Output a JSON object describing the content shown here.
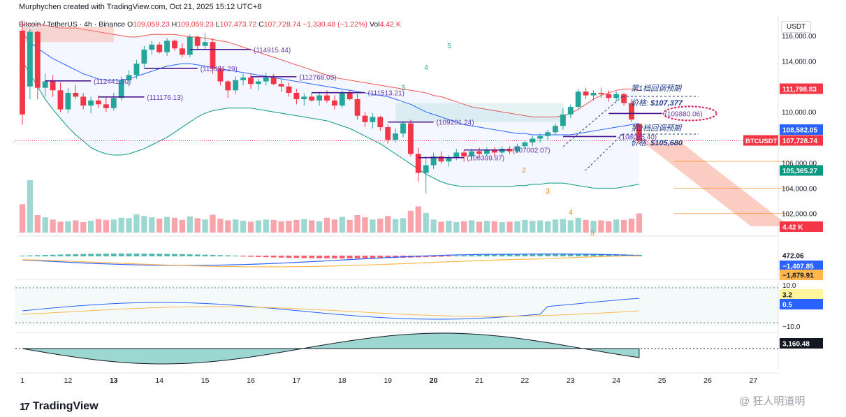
{
  "header": {
    "credit": "Murphychen created with TradingView.com, Oct 21, 2025 15:12 UTC+8"
  },
  "legend": {
    "pair": "Bitcoin / TetherUS · 4h · Binance",
    "o_label": "O",
    "o": "109,059.23",
    "h_label": "H",
    "h": "109,059.23",
    "l_label": "L",
    "l": "107,473.72",
    "c_label": "C",
    "c": "107,728.74",
    "change": "−1,330.48 (−1.22%)",
    "vol_label": "Vol",
    "vol": "4.42 K"
  },
  "currency_button": "USDT",
  "colors": {
    "up": "#26a69a",
    "down": "#f23645",
    "upper_band": "#ef5350",
    "mid_band": "#2962ff",
    "lower_band": "#089981",
    "level": "#4a148c",
    "level_text": "#673ab7",
    "annotation": "#1e3a8a",
    "projection": "#f8927a"
  },
  "annotations": {
    "first": {
      "title": "第1档回调预期",
      "price_label": "价格:",
      "price": "$107,377"
    },
    "second": {
      "title": "第2档回调预期",
      "price_label": "价格:",
      "price": "$105,680"
    }
  },
  "footer": {
    "logo": "TradingView",
    "logo_mark": "17",
    "watermark": "@ 狂人明道明"
  },
  "chart_data": {
    "type": "candlestick",
    "title": "Bitcoin / TetherUS · 4h · Binance",
    "ylim": [
      100500,
      117600
    ],
    "y_ticks": [
      {
        "value": 116000,
        "label": "116,000.00"
      },
      {
        "value": 114000,
        "label": "114,000.00"
      },
      {
        "value": 112000,
        "label": "112,000.00"
      },
      {
        "value": 110000,
        "label": "110,000.00"
      },
      {
        "value": 106000,
        "label": "106,000.00"
      },
      {
        "value": 104000,
        "label": "104,000.00"
      },
      {
        "value": 102000,
        "label": "102,000.00"
      }
    ],
    "x_ticks": [
      "1",
      "12",
      "13",
      "14",
      "15",
      "16",
      "17",
      "18",
      "19",
      "20",
      "21",
      "22",
      "23",
      "24",
      "25",
      "26",
      "27"
    ],
    "x_tick_day_index": [
      0,
      1,
      2,
      3,
      4,
      5,
      6,
      7,
      8,
      9,
      10,
      11,
      12,
      13,
      14,
      15,
      16
    ],
    "candles": [
      [
        116400,
        117200,
        109000,
        109800
      ],
      [
        112000,
        116500,
        111000,
        116300
      ],
      [
        116300,
        116400,
        111000,
        111900
      ],
      [
        111900,
        113000,
        111200,
        112400
      ],
      [
        112400,
        112900,
        111200,
        111700
      ],
      [
        111700,
        112300,
        110000,
        110200
      ],
      [
        110200,
        111900,
        109900,
        111500
      ],
      [
        111500,
        112100,
        111000,
        111200
      ],
      [
        111200,
        111500,
        110200,
        110500
      ],
      [
        110500,
        111200,
        109900,
        110900
      ],
      [
        110900,
        111300,
        110300,
        110600
      ],
      [
        110600,
        111200,
        110000,
        110300
      ],
      [
        110300,
        111500,
        110100,
        111100
      ],
      [
        111100,
        112800,
        110900,
        112500
      ],
      [
        112500,
        113300,
        112000,
        112900
      ],
      [
        112900,
        114100,
        112600,
        113800
      ],
      [
        113800,
        115200,
        113500,
        114900
      ],
      [
        114900,
        115600,
        114500,
        115300
      ],
      [
        115300,
        115500,
        114600,
        114700
      ],
      [
        114700,
        115800,
        114400,
        115600
      ],
      [
        115600,
        115700,
        114800,
        115000
      ],
      [
        115000,
        115400,
        114300,
        114500
      ],
      [
        114500,
        116100,
        114300,
        115900
      ],
      [
        115900,
        116000,
        114900,
        115200
      ],
      [
        115200,
        116200,
        114900,
        115500
      ],
      [
        115500,
        115800,
        113000,
        113400
      ],
      [
        113400,
        113600,
        112100,
        112400
      ],
      [
        112400,
        112500,
        111100,
        111700
      ],
      [
        111700,
        112800,
        111400,
        112500
      ],
      [
        112500,
        113000,
        112100,
        112700
      ],
      [
        112700,
        113000,
        111800,
        112200
      ],
      [
        112200,
        112600,
        111700,
        112400
      ],
      [
        112400,
        113100,
        112100,
        112700
      ],
      [
        112700,
        113000,
        112100,
        112200
      ],
      [
        112200,
        112600,
        111600,
        112000
      ],
      [
        112000,
        112300,
        111200,
        111500
      ],
      [
        111500,
        111800,
        110600,
        111000
      ],
      [
        111000,
        111500,
        110500,
        111200
      ],
      [
        111200,
        111500,
        110800,
        110900
      ],
      [
        110900,
        111500,
        110500,
        111300
      ],
      [
        111300,
        111700,
        110700,
        110900
      ],
      [
        110900,
        111300,
        110200,
        110500
      ],
      [
        110500,
        111700,
        110300,
        111500
      ],
      [
        111500,
        111700,
        110900,
        111000
      ],
      [
        111000,
        111400,
        109400,
        109700
      ],
      [
        109700,
        110000,
        108800,
        109200
      ],
      [
        109200,
        109900,
        108700,
        109600
      ],
      [
        109600,
        109700,
        108500,
        108800
      ],
      [
        108800,
        109000,
        107500,
        107800
      ],
      [
        107800,
        108700,
        107600,
        108300
      ],
      [
        108300,
        109300,
        108000,
        109100
      ],
      [
        109100,
        109400,
        106500,
        106700
      ],
      [
        106700,
        107200,
        104500,
        105200
      ],
      [
        105200,
        106500,
        103600,
        105800
      ],
      [
        105800,
        106800,
        105500,
        106500
      ],
      [
        106500,
        106900,
        105900,
        106100
      ],
      [
        106100,
        106600,
        105700,
        106400
      ],
      [
        106400,
        107100,
        106200,
        106800
      ],
      [
        106800,
        107000,
        106100,
        106500
      ],
      [
        106500,
        107100,
        106300,
        106900
      ],
      [
        106900,
        107200,
        106400,
        106700
      ],
      [
        106700,
        107200,
        106500,
        107000
      ],
      [
        107000,
        107200,
        106500,
        106800
      ],
      [
        106800,
        107300,
        106600,
        107100
      ],
      [
        107100,
        107300,
        106700,
        106900
      ],
      [
        106900,
        107500,
        106800,
        107300
      ],
      [
        107300,
        107800,
        107000,
        107600
      ],
      [
        107600,
        108100,
        107300,
        107900
      ],
      [
        107900,
        108300,
        107600,
        108100
      ],
      [
        108100,
        108600,
        107800,
        108400
      ],
      [
        108400,
        109100,
        108200,
        108900
      ],
      [
        108900,
        110300,
        108600,
        109800
      ],
      [
        109800,
        110600,
        109500,
        110400
      ],
      [
        110400,
        111800,
        110200,
        111600
      ],
      [
        111600,
        111900,
        111000,
        111300
      ],
      [
        111300,
        111700,
        110900,
        111500
      ],
      [
        111500,
        111900,
        111100,
        111400
      ],
      [
        111400,
        111700,
        110800,
        111100
      ],
      [
        111100,
        111600,
        110800,
        111400
      ],
      [
        111400,
        111500,
        110500,
        110700
      ],
      [
        110700,
        111000,
        109200,
        109400
      ],
      [
        109059,
        109059,
        107473,
        107728
      ]
    ],
    "volume_max_label": "4.42 K",
    "volume": [
      6.5,
      12.0,
      4.0,
      3.5,
      3.0,
      2.5,
      2.6,
      2.8,
      2.4,
      2.7,
      3.1,
      2.9,
      3.0,
      3.4,
      3.3,
      4.2,
      3.8,
      3.5,
      3.2,
      3.6,
      3.4,
      2.9,
      3.7,
      3.3,
      3.0,
      4.1,
      3.2,
      2.8,
      3.0,
      2.7,
      2.5,
      2.8,
      3.0,
      2.9,
      2.6,
      2.7,
      2.9,
      3.1,
      2.8,
      2.6,
      3.4,
      3.0,
      3.6,
      2.9,
      4.0,
      3.5,
      3.0,
      3.2,
      3.8,
      3.1,
      3.3,
      5.0,
      6.0,
      4.5,
      3.0,
      2.5,
      2.7,
      2.4,
      2.6,
      2.8,
      2.5,
      2.7,
      2.6,
      2.4,
      2.5,
      2.6,
      2.9,
      2.7,
      2.8,
      2.6,
      3.0,
      3.1,
      2.8,
      3.4,
      2.9,
      2.7,
      2.8,
      2.6,
      3.0,
      2.9,
      3.2,
      4.4
    ],
    "bollinger": {
      "upper": [
        116900,
        116900,
        116900,
        116800,
        116700,
        116600,
        116600,
        116600,
        116500,
        116400,
        116300,
        116200,
        116100,
        116000,
        115900,
        115900,
        116000,
        116100,
        116100,
        116100,
        116100,
        116000,
        115900,
        115900,
        115800,
        115700,
        115600,
        115500,
        115300,
        115100,
        114900,
        114700,
        114500,
        114300,
        114100,
        113900,
        113700,
        113500,
        113300,
        113100,
        112900,
        112700,
        112600,
        112500,
        112400,
        112300,
        112200,
        112100,
        112000,
        111900,
        111800,
        111700,
        111600,
        111500,
        111300,
        111200,
        111000,
        110800,
        110600,
        110400,
        110300,
        110200,
        110100,
        110000,
        109900,
        109800,
        109700,
        109600,
        109600,
        109600,
        109600,
        109700,
        109900,
        110200,
        110600,
        111000,
        111300,
        111500,
        111700,
        111800,
        111800,
        111700
      ],
      "middle": [
        116200,
        115500,
        115000,
        114600,
        114200,
        113900,
        113600,
        113300,
        113000,
        112800,
        112600,
        112500,
        112500,
        112500,
        112600,
        112800,
        113000,
        113200,
        113400,
        113600,
        113700,
        113800,
        113800,
        113700,
        113600,
        113500,
        113400,
        113300,
        113200,
        113100,
        113000,
        112900,
        112800,
        112700,
        112600,
        112500,
        112400,
        112300,
        112200,
        112100,
        112000,
        111900,
        111800,
        111700,
        111600,
        111500,
        111400,
        111300,
        111200,
        111000,
        110800,
        110600,
        110300,
        110000,
        109800,
        109600,
        109400,
        109200,
        109000,
        108900,
        108800,
        108700,
        108600,
        108500,
        108400,
        108300,
        108300,
        108200,
        108200,
        108200,
        108200,
        108200,
        108200,
        108300,
        108400,
        108500,
        108600,
        108700,
        108800,
        108900,
        109000,
        109100
      ],
      "lower": [
        114000,
        113000,
        112000,
        111000,
        110200,
        109500,
        108800,
        108200,
        107700,
        107200,
        106900,
        106700,
        106600,
        106600,
        106700,
        106900,
        107100,
        107400,
        107700,
        108000,
        108400,
        108800,
        109200,
        109600,
        109900,
        110100,
        110200,
        110300,
        110300,
        110300,
        110300,
        110200,
        110100,
        110000,
        109900,
        109800,
        109700,
        109600,
        109500,
        109400,
        109300,
        109100,
        108900,
        108700,
        108400,
        108100,
        107800,
        107500,
        107100,
        106700,
        106300,
        105900,
        105500,
        105100,
        104800,
        104500,
        104300,
        104200,
        104100,
        104100,
        104100,
        104100,
        104100,
        104100,
        104100,
        104200,
        104200,
        104300,
        104300,
        104400,
        104400,
        104400,
        104300,
        104200,
        104100,
        104000,
        104000,
        104000,
        104000,
        104100,
        104200,
        104300
      ]
    },
    "levels": [
      {
        "price": 114915.44,
        "label": "(114915.44)",
        "from": 22,
        "to": 30
      },
      {
        "price": 113431.29,
        "label": "(113431.29)",
        "from": 16,
        "to": 23
      },
      {
        "price": 112441.5,
        "label": "(112441.50)",
        "from": 3,
        "to": 9
      },
      {
        "price": 112768.03,
        "label": "(112768.03)",
        "from": 30,
        "to": 36
      },
      {
        "price": 111176.13,
        "label": "(111176.13)",
        "from": 10,
        "to": 16
      },
      {
        "price": 111513.21,
        "label": "(111513.21)",
        "from": 38,
        "to": 45
      },
      {
        "price": 109201.24,
        "label": "(109201.24)",
        "from": 48,
        "to": 54
      },
      {
        "price": 106399.97,
        "label": "(106399.97)",
        "from": 52,
        "to": 58
      },
      {
        "price": 107002.07,
        "label": "(107002.07)",
        "from": 58,
        "to": 64
      },
      {
        "price": 109880.06,
        "label": "(109880.06)",
        "from": 77,
        "to": 84
      },
      {
        "price": 108065.4,
        "label": "(108065.40)",
        "from": 71,
        "to": 78
      }
    ],
    "highlighted_level": "(109880.06)",
    "wave_labels": [
      {
        "text": "5",
        "color": "#26a69a"
      },
      {
        "text": "4",
        "color": "#26a69a"
      },
      {
        "text": "3",
        "color": "#26a69a"
      },
      {
        "text": "2",
        "color": "#f57c00"
      },
      {
        "text": "3",
        "color": "#f57c00"
      },
      {
        "text": "4",
        "color": "#f57c00"
      },
      {
        "text": "5",
        "color": "#f57c00"
      }
    ],
    "price_tags": [
      {
        "value": 111798.83,
        "label": "111,798.83",
        "color": "#f23645"
      },
      {
        "value": 108582.05,
        "label": "108,582.05",
        "color": "#2962ff"
      },
      {
        "value": 107728.74,
        "label": "107,728.74",
        "color": "#f23645",
        "prefix": "BTCUSDT"
      },
      {
        "value": 105365.27,
        "label": "105,365.27",
        "color": "#089981"
      }
    ],
    "macd": {
      "tag_values": [
        "472.06",
        "−1,407.85",
        "−1,879.91"
      ],
      "tag_colors": [
        "#ffffff",
        "#2962ff",
        "#ffb74d"
      ]
    },
    "rsi": {
      "top_label": "10.0",
      "bottom_label": "−10.0",
      "tag_values": [
        "3.2",
        "0.5"
      ],
      "tag_colors": [
        "#fff59d",
        "#2962ff"
      ]
    },
    "osc": {
      "tag_value": "3,160.48"
    }
  }
}
